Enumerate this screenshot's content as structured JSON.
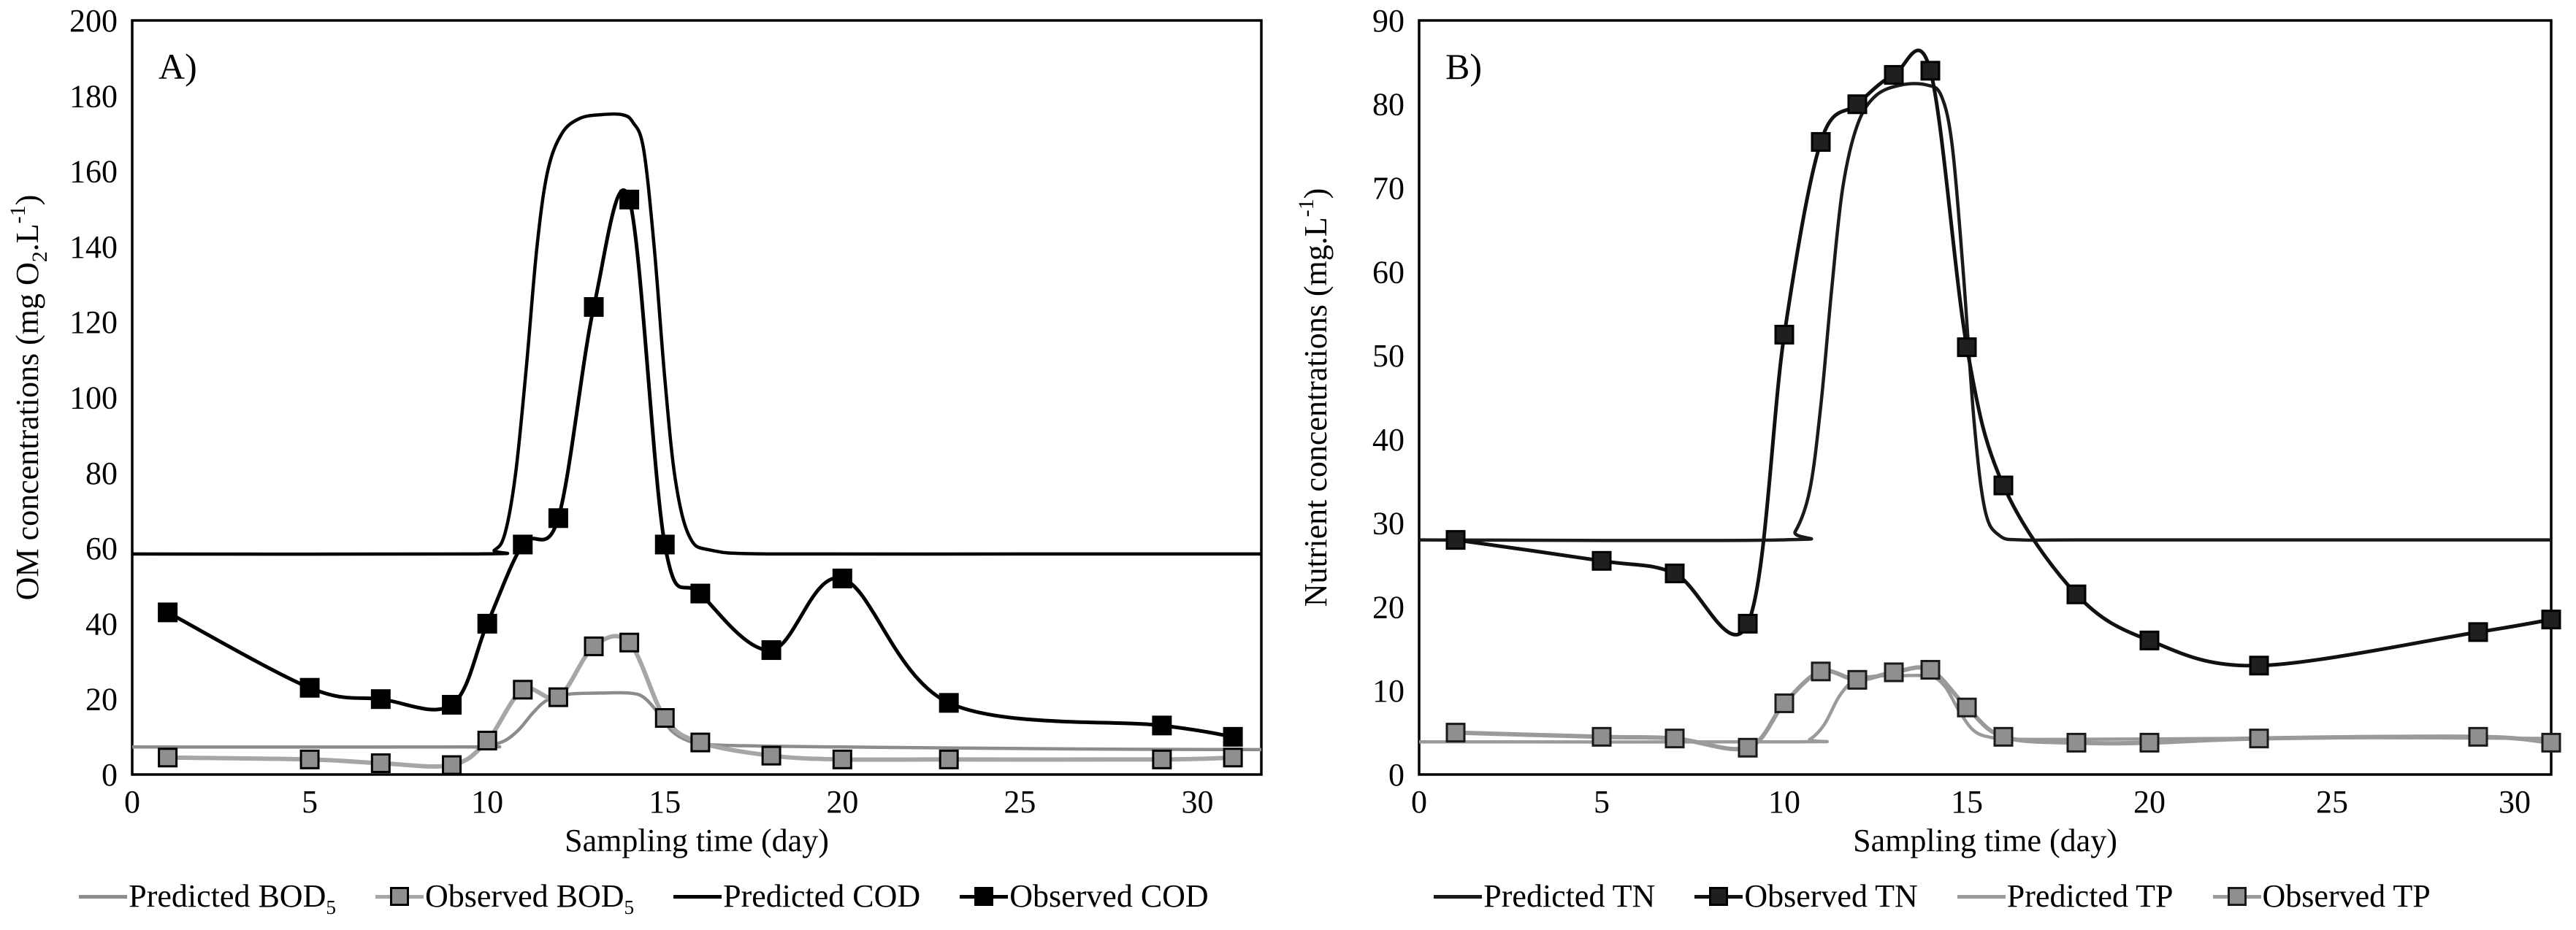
{
  "figure": {
    "background": "#ffffff",
    "text_color": "#000000",
    "x_axis_title": "Sampling time (day)"
  },
  "chart_data": [
    {
      "id": "A",
      "type": "line",
      "panel_label": "A)",
      "xlabel": "Sampling time (day)",
      "ylabel": "OM concentrations (mg O2.L-1)",
      "ylabel_parts": [
        {
          "t": "OM concentrations  (mg O",
          "pos": "n"
        },
        {
          "t": "2",
          "pos": "sub"
        },
        {
          "t": ".L",
          "pos": "n"
        },
        {
          "t": "-1",
          "pos": "sup"
        },
        {
          "t": ")",
          "pos": "n"
        }
      ],
      "xlim": [
        0,
        31.8
      ],
      "ylim": [
        0,
        200
      ],
      "x_ticks": [
        0,
        5,
        10,
        15,
        20,
        25,
        30
      ],
      "y_ticks": [
        0,
        20,
        40,
        60,
        80,
        100,
        120,
        140,
        160,
        180,
        200
      ],
      "grid": false,
      "legend_position": "bottom",
      "observed_days": [
        1,
        5,
        7,
        9,
        10,
        11,
        12,
        13,
        14,
        15,
        16,
        18,
        20,
        23,
        29,
        31
      ],
      "series": [
        {
          "name": "Predicted BOD5",
          "legend": {
            "base": "Predicted BOD",
            "sub": "5"
          },
          "kind": "predicted",
          "color": "#8c8c8c",
          "line_width": 4.5,
          "x": [
            0,
            9.5,
            10.0,
            10.5,
            10.9,
            11.3,
            11.7,
            12.3,
            13.2,
            14.0,
            14.4,
            14.8,
            15.2,
            15.7,
            16.3,
            18,
            21,
            25,
            28,
            31.8
          ],
          "y": [
            7.3,
            7.3,
            7.6,
            9.0,
            12.0,
            16.5,
            19.8,
            21.3,
            21.6,
            21.6,
            20.5,
            16.5,
            11.5,
            8.8,
            7.9,
            7.5,
            7.2,
            6.9,
            6.7,
            6.6
          ]
        },
        {
          "name": "Observed BOD5",
          "legend": {
            "base": "Observed BOD",
            "sub": "5"
          },
          "kind": "observed",
          "line_color": "#a6a6a6",
          "marker_fill": "#8f8f8f",
          "marker_stroke": "#000000",
          "line_width": 6,
          "values": [
            4.5,
            4,
            3,
            2.5,
            9,
            22.5,
            20.5,
            34,
            35,
            15,
            8.5,
            5,
            4,
            4,
            4,
            4.5
          ]
        },
        {
          "name": "Predicted COD",
          "legend": {
            "base": "Predicted COD",
            "sub": ""
          },
          "kind": "predicted",
          "color": "#000000",
          "line_width": 4.5,
          "x": [
            0,
            9.7,
            10.2,
            10.5,
            10.8,
            11.1,
            11.4,
            11.7,
            12.1,
            12.6,
            13.2,
            13.8,
            14.1,
            14.4,
            14.7,
            15.0,
            15.3,
            15.7,
            16.3,
            18,
            25,
            31.8
          ],
          "y": [
            58.5,
            58.5,
            59.5,
            64,
            80,
            108,
            140,
            160,
            170,
            174,
            175,
            175,
            173,
            166,
            140,
            105,
            78,
            63,
            59.5,
            58.5,
            58.5,
            58.5
          ]
        },
        {
          "name": "Observed COD",
          "legend": {
            "base": "Observed COD",
            "sub": ""
          },
          "kind": "observed",
          "line_color": "#000000",
          "marker_fill": "#000000",
          "marker_stroke": "#000000",
          "line_width": 5,
          "values": [
            43,
            23,
            20,
            18.5,
            40,
            61,
            68,
            124,
            152.5,
            61,
            48,
            33,
            52,
            19,
            13,
            10
          ]
        }
      ]
    },
    {
      "id": "B",
      "type": "line",
      "panel_label": "B)",
      "xlabel": "Sampling time (day)",
      "ylabel": "Nutrient concentrations (mg.L-1)",
      "ylabel_parts": [
        {
          "t": "Nutrient concentrations  (mg.L",
          "pos": "n"
        },
        {
          "t": "-1",
          "pos": "sup"
        },
        {
          "t": ")",
          "pos": "n"
        }
      ],
      "xlim": [
        0,
        31
      ],
      "ylim": [
        0,
        90
      ],
      "x_ticks": [
        0,
        5,
        10,
        15,
        20,
        25,
        30
      ],
      "y_ticks": [
        0,
        10,
        20,
        30,
        40,
        50,
        60,
        70,
        80,
        90
      ],
      "grid": false,
      "legend_position": "bottom",
      "observed_days": [
        1,
        5,
        7,
        9,
        10,
        11,
        12,
        13,
        14,
        15,
        16,
        18,
        20,
        23,
        29,
        31
      ],
      "series": [
        {
          "name": "Predicted TN",
          "legend": {
            "base": "Predicted TN",
            "sub": ""
          },
          "kind": "predicted",
          "color": "#1a1a1a",
          "line_width": 4.5,
          "x": [
            0,
            9.9,
            10.3,
            10.7,
            11.0,
            11.3,
            11.6,
            12.0,
            12.5,
            13.2,
            13.9,
            14.3,
            14.6,
            14.9,
            15.2,
            15.5,
            15.9,
            16.5,
            18,
            25,
            31
          ],
          "y": [
            28,
            28,
            29,
            34,
            44,
            58,
            70,
            77.5,
            81,
            82.3,
            82.3,
            81,
            75,
            60,
            42,
            31.5,
            28.5,
            28,
            28,
            28,
            28
          ]
        },
        {
          "name": "Observed TN",
          "legend": {
            "base": "Observed TN",
            "sub": ""
          },
          "kind": "observed",
          "line_color": "#111111",
          "marker_fill": "#1f1f1f",
          "marker_stroke": "#000000",
          "line_width": 5,
          "values": [
            28,
            25.5,
            24,
            18,
            52.5,
            75.5,
            80,
            83.5,
            84,
            51,
            34.5,
            21.5,
            16,
            13,
            17,
            18.5
          ]
        },
        {
          "name": "Predicted TP",
          "legend": {
            "base": "Predicted TP",
            "sub": ""
          },
          "kind": "predicted",
          "color": "#9a9a9a",
          "line_width": 4.5,
          "x": [
            0,
            10.3,
            10.7,
            11.1,
            11.5,
            11.9,
            12.4,
            13.2,
            14.0,
            14.4,
            14.8,
            15.2,
            15.7,
            16.5,
            18,
            22,
            26,
            31
          ],
          "y": [
            3.9,
            3.9,
            4.2,
            6.0,
            9.3,
            11.2,
            11.7,
            11.8,
            11.7,
            10.5,
            7.5,
            5.2,
            4.4,
            4.2,
            4.2,
            4.3,
            4.4,
            4.3
          ]
        },
        {
          "name": "Observed TP",
          "legend": {
            "base": "Observed TP",
            "sub": ""
          },
          "kind": "observed",
          "line_color": "#9a9a9a",
          "marker_fill": "#8f8f8f",
          "marker_stroke": "#1a1a1a",
          "line_width": 6,
          "values": [
            5,
            4.5,
            4.3,
            3.2,
            8.5,
            12.3,
            11.3,
            12.2,
            12.5,
            8,
            4.5,
            3.8,
            3.8,
            4.3,
            4.5,
            3.8
          ]
        }
      ]
    }
  ]
}
